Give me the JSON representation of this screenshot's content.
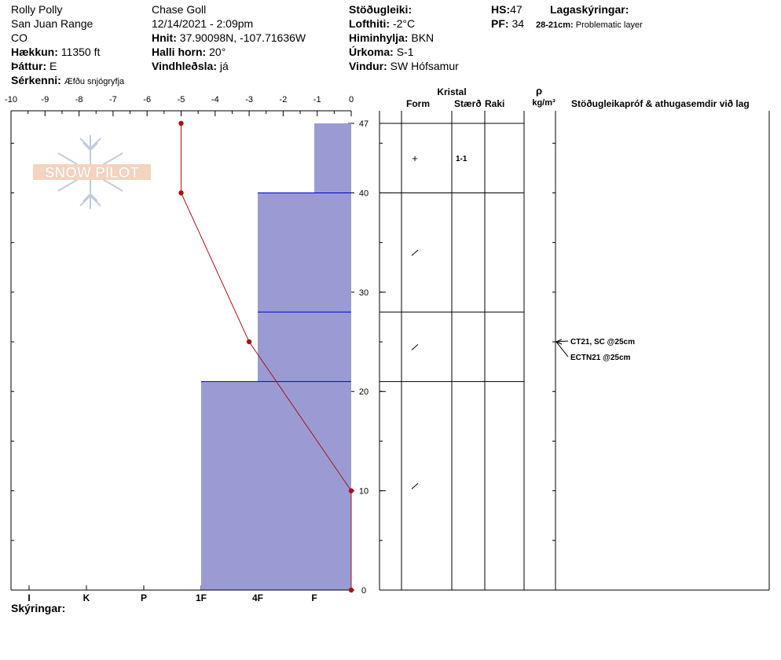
{
  "header": {
    "location_name": "Rolly Polly",
    "range": "San Juan Range",
    "state": "CO",
    "elevation_label": "Hækkun:",
    "elevation_value": "11350 ft",
    "aspect_label": "Þáttur:",
    "aspect_value": "E",
    "features_label": "Sérkenni:",
    "features_value": "Æfðu snjógryfja",
    "observer": "Chase Goll",
    "datetime": "12/14/2021 - 2:09pm",
    "coords_label": "Hnit:",
    "coords_value": "37.90098N, -107.71636W",
    "slope_label": "Halli horn:",
    "slope_value": "20°",
    "wind_loading_label": "Vindhleðsla:",
    "wind_loading_value": "já",
    "stability_label": "Stöðugleiki:",
    "stability_value": "",
    "air_temp_label": "Lofthiti:",
    "air_temp_value": "-2°C",
    "sky_label": "Himinhylja:",
    "sky_value": "BKN",
    "precip_label": "Úrkoma:",
    "precip_value": "S-1",
    "wind_label": "Vindur:",
    "wind_value": "SW Hófsamur",
    "hs_label": "HS:",
    "hs_value": "47",
    "pf_label": "PF:",
    "pf_value": "34",
    "layer_notes_label": "Lagaskýringar:",
    "layer_note_range": "28-21cm:",
    "layer_note_text": "Problematic layer"
  },
  "logo": {
    "text": "SNOW PILOT"
  },
  "footer": {
    "notes_label": "Skýringar:"
  },
  "table": {
    "crystal_header": "Kristal",
    "form_header": "Form",
    "size_header": "Stærð",
    "moisture_header": "Raki",
    "density_symbol": "ρ",
    "density_unit": "kg/m³",
    "tests_header": "Stöðugleikapróf & athugasemdir við lag",
    "layers": [
      {
        "top": 47,
        "bottom": 40,
        "form": "+",
        "size": "1-1"
      },
      {
        "top": 40,
        "bottom": 28,
        "form": "/",
        "size": ""
      },
      {
        "top": 28,
        "bottom": 21,
        "form": "/",
        "size": ""
      },
      {
        "top": 21,
        "bottom": 0,
        "form": "/",
        "size": ""
      }
    ],
    "tests": [
      {
        "text": "CT21, SC @25cm",
        "depth": 25
      },
      {
        "text": "ECTN21 @25cm",
        "depth": 25
      }
    ]
  },
  "chart_data": {
    "type": "snow-profile",
    "temperature_axis": {
      "ticks": [
        "-10",
        "-9",
        "-8",
        "-7",
        "-6",
        "-5",
        "-4",
        "-3",
        "-2",
        "-1",
        "0"
      ],
      "xlim": [
        -10,
        0
      ]
    },
    "depth_axis": {
      "ticks": [
        "47",
        "40",
        "30",
        "20",
        "10",
        "0"
      ],
      "ylim": [
        0,
        47
      ]
    },
    "hardness_axis": {
      "ticks": [
        "I",
        "K",
        "P",
        "1F",
        "4F",
        "F"
      ]
    },
    "colors": {
      "hardness_fill": "#9b9bd4",
      "hardness_edge": "#0000cc",
      "temp_line": "#aa1111"
    },
    "hardness_layers": [
      {
        "top": 47,
        "bottom": 40,
        "hardness": "F"
      },
      {
        "top": 40,
        "bottom": 28,
        "hardness": "4F"
      },
      {
        "top": 28,
        "bottom": 21,
        "hardness": "4F"
      },
      {
        "top": 21,
        "bottom": 0,
        "hardness": "1F"
      }
    ],
    "temperature_profile": [
      {
        "depth": 47,
        "temp": -5
      },
      {
        "depth": 40,
        "temp": -5
      },
      {
        "depth": 25,
        "temp": -3
      },
      {
        "depth": 10,
        "temp": 0
      },
      {
        "depth": 0,
        "temp": 0
      }
    ]
  }
}
